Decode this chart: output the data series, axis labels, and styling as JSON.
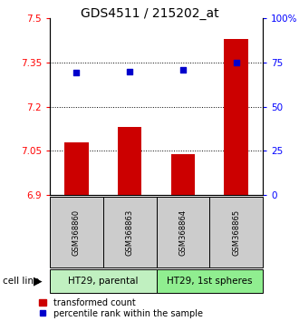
{
  "title": "GDS4511 / 215202_at",
  "samples": [
    "GSM368860",
    "GSM368863",
    "GSM368864",
    "GSM368865"
  ],
  "red_values": [
    7.08,
    7.13,
    7.04,
    7.43
  ],
  "blue_values": [
    69,
    70,
    71,
    75
  ],
  "ylim_left": [
    6.9,
    7.5
  ],
  "ylim_right": [
    0,
    100
  ],
  "yticks_left": [
    6.9,
    7.05,
    7.2,
    7.35,
    7.5
  ],
  "yticks_right": [
    0,
    25,
    50,
    75,
    100
  ],
  "ytick_labels_right": [
    "0",
    "25",
    "50",
    "75",
    "100%"
  ],
  "hlines": [
    7.05,
    7.2,
    7.35
  ],
  "cell_lines": [
    [
      "HT29, parental",
      0,
      2
    ],
    [
      "HT29, 1st spheres",
      2,
      4
    ]
  ],
  "cell_line_bg": [
    "#c0f0c0",
    "#90ee90"
  ],
  "bar_color": "#cc0000",
  "dot_color": "#0000cc",
  "bg_sample": "#cccccc",
  "title_fontsize": 10,
  "tick_fontsize": 7.5,
  "sample_fontsize": 6,
  "cell_fontsize": 7.5,
  "legend_fontsize": 7
}
